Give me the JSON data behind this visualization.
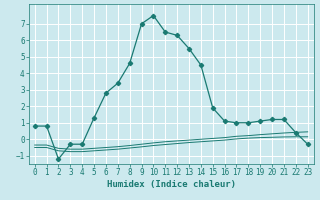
{
  "title": "",
  "xlabel": "Humidex (Indice chaleur)",
  "xlim": [
    -0.5,
    23.5
  ],
  "ylim": [
    -1.5,
    8.2
  ],
  "yticks": [
    -1,
    0,
    1,
    2,
    3,
    4,
    5,
    6,
    7
  ],
  "xticks": [
    0,
    1,
    2,
    3,
    4,
    5,
    6,
    7,
    8,
    9,
    10,
    11,
    12,
    13,
    14,
    15,
    16,
    17,
    18,
    19,
    20,
    21,
    22,
    23
  ],
  "background_color": "#cce9ee",
  "grid_color": "#ffffff",
  "line_color": "#1a7a72",
  "curve1_x": [
    0,
    1,
    2,
    3,
    4,
    5,
    6,
    7,
    8,
    9,
    10,
    11,
    12,
    13,
    14,
    15,
    16,
    17,
    18,
    19,
    20,
    21,
    22,
    23
  ],
  "curve1_y": [
    0.8,
    0.8,
    -1.2,
    -0.3,
    -0.3,
    1.3,
    2.8,
    3.4,
    4.6,
    7.0,
    7.5,
    6.5,
    6.3,
    5.5,
    4.5,
    1.9,
    1.1,
    1.0,
    1.0,
    1.1,
    1.2,
    1.2,
    0.4,
    -0.3
  ],
  "curve2_x": [
    0,
    1,
    2,
    3,
    4,
    5,
    6,
    7,
    8,
    9,
    10,
    11,
    12,
    13,
    14,
    15,
    16,
    17,
    18,
    19,
    20,
    21,
    22,
    23
  ],
  "curve2_y": [
    -0.35,
    -0.35,
    -0.55,
    -0.6,
    -0.6,
    -0.55,
    -0.5,
    -0.45,
    -0.38,
    -0.3,
    -0.22,
    -0.15,
    -0.1,
    -0.05,
    0.0,
    0.05,
    0.1,
    0.18,
    0.22,
    0.28,
    0.33,
    0.38,
    0.42,
    0.45
  ],
  "curve3_x": [
    0,
    1,
    2,
    3,
    4,
    5,
    6,
    7,
    8,
    9,
    10,
    11,
    12,
    13,
    14,
    15,
    16,
    17,
    18,
    19,
    20,
    21,
    22,
    23
  ],
  "curve3_y": [
    -0.5,
    -0.5,
    -0.7,
    -0.75,
    -0.75,
    -0.7,
    -0.65,
    -0.6,
    -0.53,
    -0.46,
    -0.38,
    -0.32,
    -0.26,
    -0.2,
    -0.15,
    -0.1,
    -0.05,
    0.02,
    0.07,
    0.1,
    0.12,
    0.14,
    0.15,
    0.15
  ],
  "font_color": "#1a7a72",
  "tick_fontsize": 5.5,
  "label_fontsize": 6.5
}
